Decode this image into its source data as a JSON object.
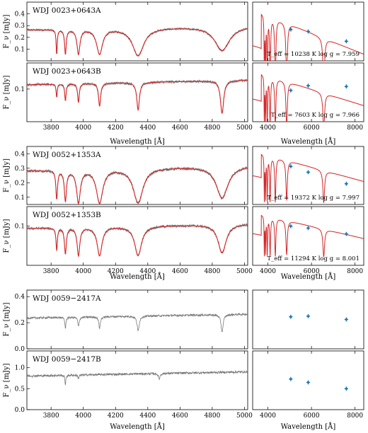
{
  "figure": {
    "xlabel": "Wavelength [Å]",
    "spec_ylabel": "F_ν [mJy]",
    "spec_xticks": [
      3800,
      4000,
      4200,
      4400,
      4600,
      4800,
      5000
    ],
    "sed_xticks": [
      4000,
      6000,
      8000
    ]
  },
  "chart_data": [
    {
      "type": "line",
      "name": "WDJ 0023+0643A",
      "x_range": [
        3650,
        5020
      ],
      "ylim": [
        0.0,
        0.5
      ],
      "yticks": [
        0.1,
        0.2,
        0.3,
        0.4
      ],
      "continuum": 0.28,
      "model": true,
      "lines": [
        [
          3835,
          0.8,
          4
        ],
        [
          3889,
          0.8,
          6
        ],
        [
          3970,
          0.8,
          11
        ],
        [
          4101,
          0.8,
          22
        ],
        [
          4340,
          0.85,
          42
        ],
        [
          4861,
          0.7,
          55
        ]
      ]
    },
    {
      "type": "line",
      "name": "WDJ 0023+0643B",
      "x_range": [
        3650,
        5020
      ],
      "ylim": [
        0.0,
        0.18
      ],
      "yticks": [
        0.1
      ],
      "continuum": 0.12,
      "model": true,
      "lines": [
        [
          3835,
          0.35,
          4
        ],
        [
          3889,
          0.45,
          5
        ],
        [
          3970,
          0.5,
          6
        ],
        [
          4101,
          0.6,
          8
        ],
        [
          4340,
          0.7,
          10
        ],
        [
          4861,
          0.8,
          12
        ]
      ]
    },
    {
      "type": "line",
      "name": "WDJ 0052+1353A",
      "x_range": [
        3650,
        5020
      ],
      "ylim": [
        0.05,
        0.45
      ],
      "yticks": [
        0.1,
        0.2,
        0.3,
        0.4
      ],
      "continuum": 0.3,
      "model": true,
      "lines": [
        [
          3835,
          0.7,
          6
        ],
        [
          3889,
          0.75,
          8
        ],
        [
          3970,
          0.8,
          14
        ],
        [
          4101,
          0.8,
          24
        ],
        [
          4340,
          0.8,
          36
        ],
        [
          4861,
          0.7,
          44
        ]
      ]
    },
    {
      "type": "line",
      "name": "WDJ 0052+1353B",
      "x_range": [
        3650,
        5020
      ],
      "ylim": [
        0.0,
        0.15
      ],
      "yticks": [
        0.1
      ],
      "continuum": 0.1,
      "model": true,
      "lines": [
        [
          3835,
          0.6,
          5
        ],
        [
          3889,
          0.7,
          7
        ],
        [
          3970,
          0.75,
          10
        ],
        [
          4101,
          0.75,
          18
        ],
        [
          4340,
          0.75,
          26
        ],
        [
          4861,
          0.7,
          30
        ]
      ]
    },
    {
      "type": "line",
      "name": "WDJ 0059−2417A",
      "x_range": [
        3650,
        5020
      ],
      "ylim": [
        0.0,
        0.45
      ],
      "yticks": [
        0.0,
        0.2,
        0.4
      ],
      "continuum": 0.25,
      "model": false,
      "lines": [
        [
          3889,
          0.35,
          4
        ],
        [
          3970,
          0.3,
          5
        ],
        [
          4101,
          0.35,
          6
        ],
        [
          4340,
          0.45,
          8
        ],
        [
          4861,
          0.5,
          8
        ]
      ]
    },
    {
      "type": "line",
      "name": "WDJ 0059−2417B",
      "x_range": [
        3650,
        5020
      ],
      "ylim": [
        0.0,
        1.4
      ],
      "yticks": [
        0.0,
        0.5,
        1.0
      ],
      "continuum": 0.85,
      "model": false,
      "lines": [
        [
          3889,
          0.3,
          3
        ],
        [
          3970,
          0.1,
          4
        ],
        [
          4471,
          0.15,
          6
        ]
      ]
    },
    {
      "type": "scatter",
      "name": "WDJ 0023+0643A SED",
      "ylim": [
        0.2,
        0.5
      ],
      "model_scale": 0.36,
      "points": [
        [
          5050,
          0.36
        ],
        [
          5850,
          0.35
        ],
        [
          7600,
          0.3
        ]
      ],
      "fit_label": "T_eff = 10238 K  log g = 7.959"
    },
    {
      "type": "scatter",
      "name": "WDJ 0023+0643B SED",
      "ylim": [
        0.05,
        0.2
      ],
      "model_scale": 0.14,
      "points": [
        [
          5050,
          0.13
        ],
        [
          5850,
          0.142
        ],
        [
          7600,
          0.14
        ]
      ],
      "fit_label": "T_eff = 7603 K  log g = 7.966"
    },
    {
      "type": "scatter",
      "name": "WDJ 0052+1353A SED",
      "ylim": [
        0.05,
        0.4
      ],
      "model_scale": 0.29,
      "points": [
        [
          5050,
          0.28
        ],
        [
          5850,
          0.245
        ],
        [
          7600,
          0.175
        ]
      ],
      "fit_label": "T_eff = 19372 K  log g = 7.997"
    },
    {
      "type": "scatter",
      "name": "WDJ 0052+1353B SED",
      "ylim": [
        0.0,
        0.15
      ],
      "model_scale": 0.105,
      "points": [
        [
          5050,
          0.1
        ],
        [
          5850,
          0.095
        ],
        [
          7600,
          0.08
        ]
      ],
      "fit_label": "T_eff = 11294 K  log g = 8.001"
    },
    {
      "type": "scatter",
      "name": "WDJ 0059−2417A SED",
      "ylim": [
        0.0,
        0.45
      ],
      "model_scale": null,
      "points": [
        [
          5050,
          0.245
        ],
        [
          5850,
          0.25
        ],
        [
          7600,
          0.225
        ]
      ],
      "fit_label": ""
    },
    {
      "type": "scatter",
      "name": "WDJ 0059−2417B SED",
      "ylim": [
        0.0,
        1.4
      ],
      "model_scale": null,
      "points": [
        [
          5050,
          0.73
        ],
        [
          5850,
          0.65
        ],
        [
          7600,
          0.5
        ]
      ],
      "fit_label": ""
    }
  ],
  "colors": {
    "data": "#7a7a7a",
    "model": "#d62728",
    "points": "#1f77b4",
    "axes": "#000000"
  }
}
